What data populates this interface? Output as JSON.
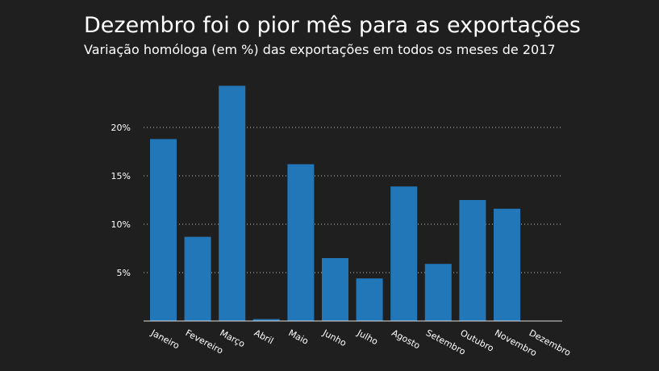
{
  "title": "Dezembro foi o pior mês para as exportações",
  "subtitle": "Variação homóloga (em %) das exportações em todos os meses de 2017",
  "colors": {
    "background": "#1f1f1f",
    "bar": "#2277b8",
    "text": "#ffffff",
    "grid": "#bbbbbb"
  },
  "chart_data": {
    "type": "bar",
    "title": "Dezembro foi o pior mês para as exportações",
    "subtitle": "Variação homóloga (em %) das exportações em todos os meses de 2017",
    "xlabel": "",
    "ylabel": "",
    "categories": [
      "Janeiro",
      "Fevereiro",
      "Março",
      "Abril",
      "Maio",
      "Junho",
      "Julho",
      "Agosto",
      "Setembro",
      "Outubro",
      "Novembro",
      "Dezembro"
    ],
    "values": [
      18.8,
      8.7,
      24.3,
      0.2,
      16.2,
      6.5,
      4.4,
      13.9,
      5.9,
      12.5,
      11.6,
      0
    ],
    "ylim": [
      0,
      25
    ],
    "yticks": [
      5,
      10,
      15,
      20
    ],
    "ytick_labels": [
      "5%",
      "10%",
      "15%",
      "20%"
    ],
    "grid": "horizontal dotted",
    "legend": "none"
  }
}
